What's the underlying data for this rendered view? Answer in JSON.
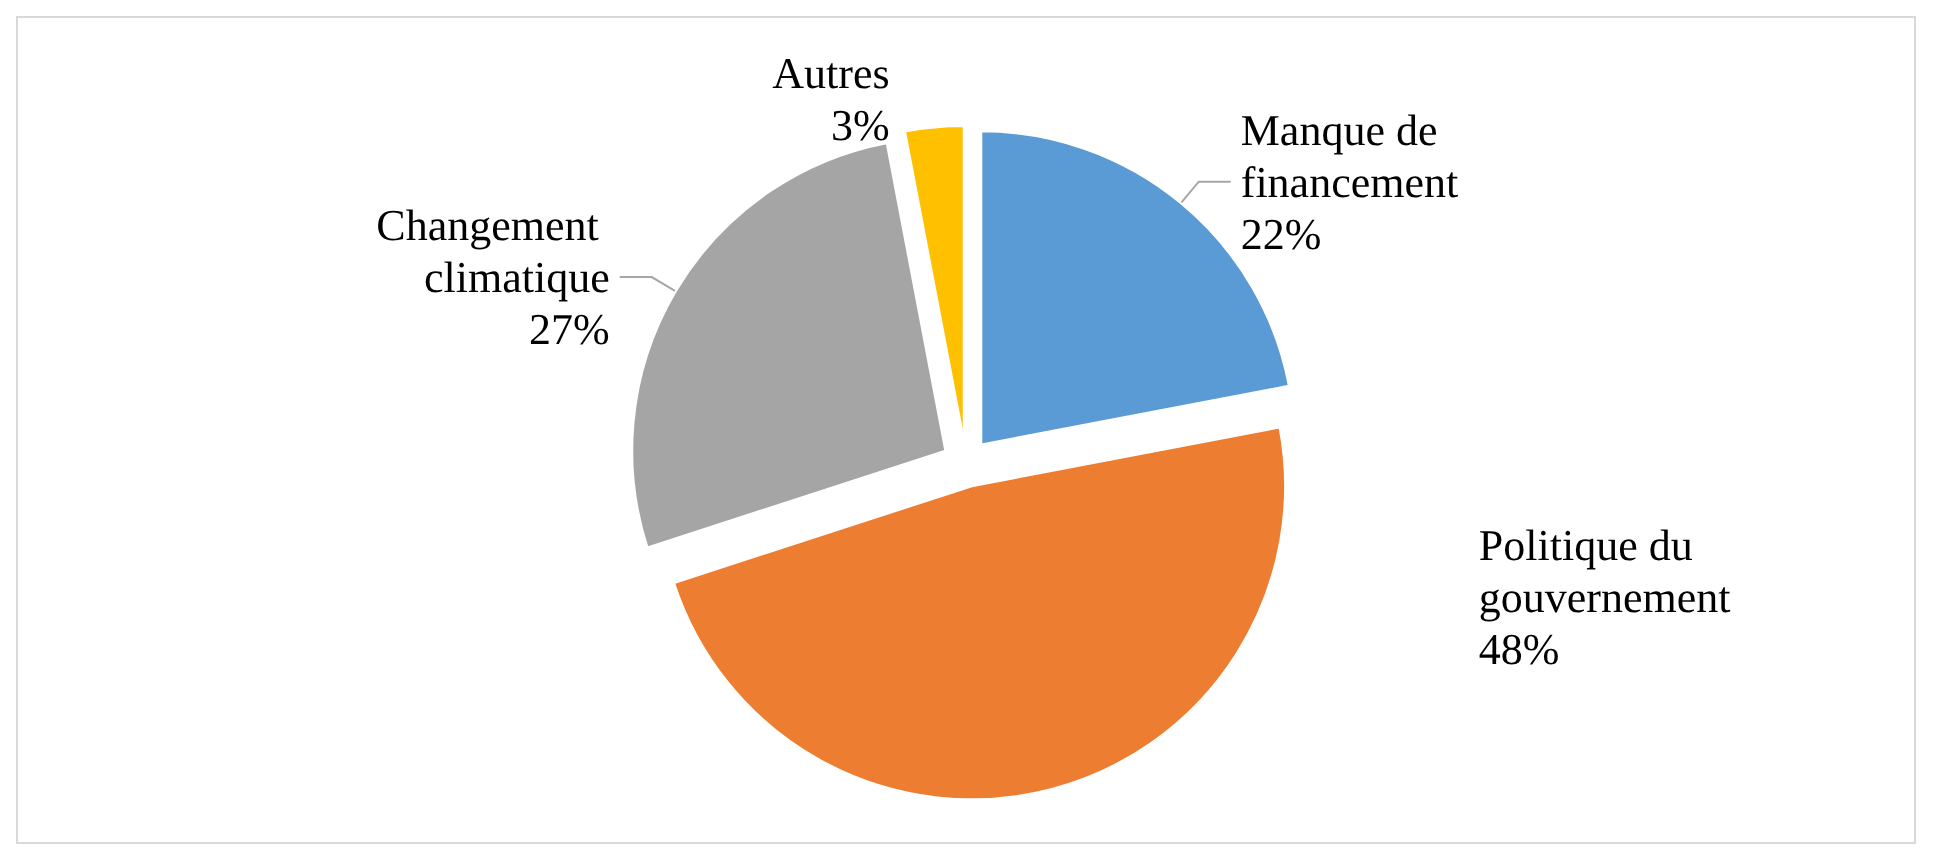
{
  "chart_data": {
    "type": "pie",
    "categories": [
      "Manque de financement",
      "Politique du gouvernement",
      "Changement climatique",
      "Autres"
    ],
    "values": [
      22,
      48,
      27,
      3
    ],
    "value_labels": [
      "22%",
      "48%",
      "27%",
      "3%"
    ],
    "colors": [
      "#5b9bd5",
      "#ed7d31",
      "#a5a5a5",
      "#ffc000"
    ],
    "legend": false
  }
}
